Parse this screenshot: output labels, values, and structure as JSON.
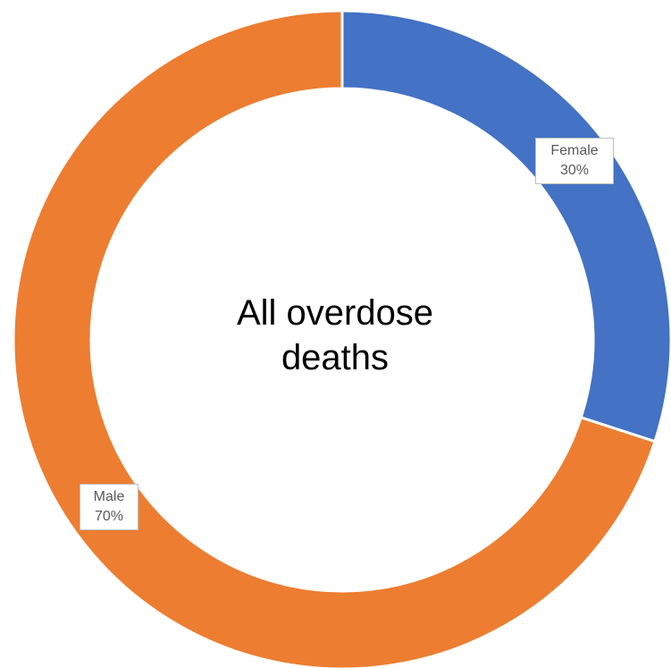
{
  "chart_data": {
    "type": "pie",
    "variant": "donut",
    "center_text": [
      "All overdose",
      "deaths"
    ],
    "categories": [
      "Female",
      "Male"
    ],
    "values": [
      30,
      70
    ],
    "labels": [
      {
        "name": "Female",
        "percent": "30%"
      },
      {
        "name": "Male",
        "percent": "70%"
      }
    ],
    "colors": [
      "#4472C4",
      "#ED7D31"
    ]
  }
}
